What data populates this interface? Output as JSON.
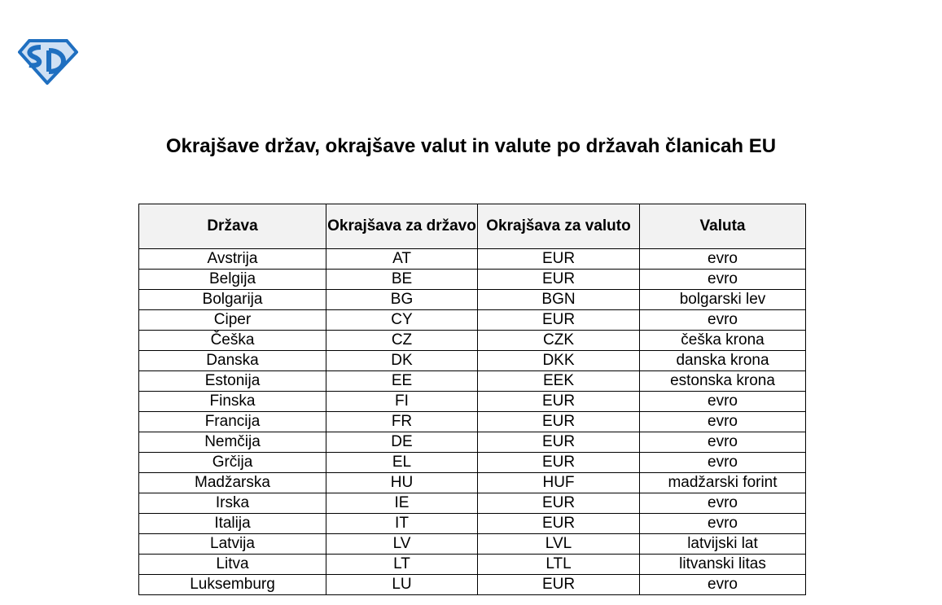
{
  "logo": {
    "text": "SD",
    "colors": {
      "primary": "#1f6fc0",
      "light": "#cfe0f4"
    }
  },
  "title": "Okrajšave držav, okrajšave valut in valute po državah članicah EU",
  "table": {
    "headers": [
      "Država",
      "Okrajšava za državo",
      "Okrajšava za valuto",
      "Valuta"
    ],
    "rows": [
      [
        "Avstrija",
        "AT",
        "EUR",
        "evro"
      ],
      [
        "Belgija",
        "BE",
        "EUR",
        "evro"
      ],
      [
        "Bolgarija",
        "BG",
        "BGN",
        "bolgarski lev"
      ],
      [
        "Ciper",
        "CY",
        "EUR",
        "evro"
      ],
      [
        "Češka",
        "CZ",
        "CZK",
        "češka krona"
      ],
      [
        "Danska",
        "DK",
        "DKK",
        "danska krona"
      ],
      [
        "Estonija",
        "EE",
        "EEK",
        "estonska krona"
      ],
      [
        "Finska",
        "FI",
        "EUR",
        "evro"
      ],
      [
        "Francija",
        "FR",
        "EUR",
        "evro"
      ],
      [
        "Nemčija",
        "DE",
        "EUR",
        "evro"
      ],
      [
        "Grčija",
        "EL",
        "EUR",
        "evro"
      ],
      [
        "Madžarska",
        "HU",
        "HUF",
        "madžarski forint"
      ],
      [
        "Irska",
        "IE",
        "EUR",
        "evro"
      ],
      [
        "Italija",
        "IT",
        "EUR",
        "evro"
      ],
      [
        "Latvija",
        "LV",
        "LVL",
        "latvijski lat"
      ],
      [
        "Litva",
        "LT",
        "LTL",
        "litvanski litas"
      ],
      [
        "Luksemburg",
        "LU",
        "EUR",
        "evro"
      ]
    ]
  }
}
